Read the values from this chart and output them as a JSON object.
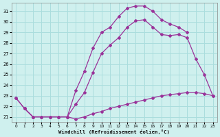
{
  "xlabel": "Windchill (Refroidissement éolien,°C)",
  "bg_color": "#cff0ee",
  "grid_color": "#aadddd",
  "line_color": "#993399",
  "xlim": [
    -0.5,
    23.5
  ],
  "ylim": [
    20.5,
    31.8
  ],
  "yticks": [
    21,
    22,
    23,
    24,
    25,
    26,
    27,
    28,
    29,
    30,
    31
  ],
  "xticks": [
    0,
    1,
    2,
    3,
    4,
    5,
    6,
    7,
    8,
    9,
    10,
    11,
    12,
    13,
    14,
    15,
    16,
    17,
    18,
    19,
    20,
    21,
    22,
    23
  ],
  "line1_x": [
    0,
    1,
    2,
    3,
    4,
    5,
    6,
    7,
    8,
    9,
    10,
    11,
    12,
    13,
    14,
    15,
    16,
    17,
    18,
    19,
    20,
    21,
    22,
    23
  ],
  "line1_y": [
    22.8,
    21.8,
    21.0,
    21.0,
    21.0,
    21.0,
    21.0,
    20.8,
    21.0,
    21.3,
    21.5,
    21.8,
    22.0,
    22.2,
    22.4,
    22.6,
    22.8,
    23.0,
    23.1,
    23.2,
    23.3,
    23.3,
    23.2,
    23.0
  ],
  "line2_x": [
    0,
    1,
    2,
    3,
    4,
    5,
    6,
    7,
    8,
    9,
    10,
    11,
    12,
    13,
    14,
    15,
    16,
    17,
    18,
    19,
    20,
    21,
    22,
    23
  ],
  "line2_y": [
    22.8,
    21.8,
    21.0,
    21.0,
    21.0,
    21.0,
    21.0,
    22.2,
    23.3,
    25.2,
    27.0,
    27.8,
    28.5,
    29.5,
    30.1,
    30.2,
    29.5,
    28.8,
    28.7,
    28.8,
    28.5,
    26.5,
    25.0,
    23.0
  ],
  "line3_x": [
    1,
    2,
    3,
    4,
    5,
    6,
    7,
    8,
    9,
    10,
    11,
    12,
    13,
    14,
    15,
    16,
    17,
    18,
    19,
    20
  ],
  "line3_y": [
    21.8,
    21.0,
    21.0,
    21.0,
    21.0,
    21.0,
    23.5,
    25.3,
    27.5,
    29.0,
    29.5,
    30.5,
    31.3,
    31.5,
    31.5,
    31.0,
    30.2,
    29.8,
    29.5,
    29.0
  ]
}
